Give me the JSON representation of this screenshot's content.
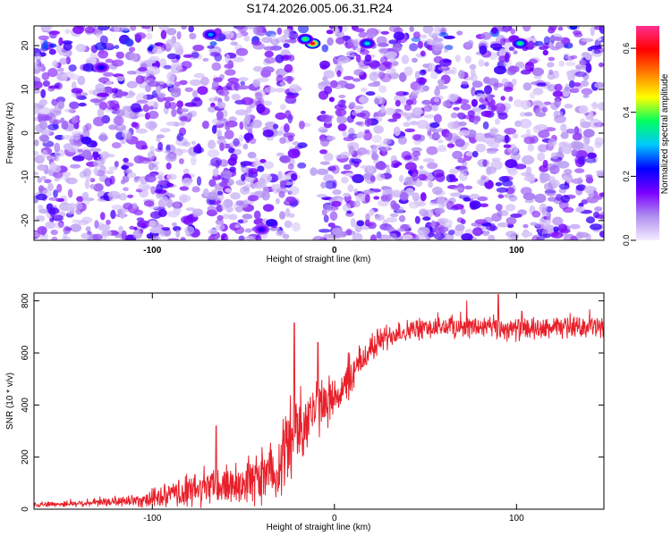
{
  "title": "S174.2026.005.06.31.R24",
  "chart_data": [
    {
      "type": "heatmap",
      "xlabel": "Height of straight line (km)",
      "ylabel": "Frequency (Hz)",
      "xlim": [
        -165,
        148
      ],
      "ylim": [
        -24.5,
        24.5
      ],
      "x_ticks": [
        -100,
        0,
        100
      ],
      "x_tick_labels": [
        "-100",
        "0",
        "100"
      ],
      "y_ticks": [
        -20,
        -10,
        0,
        10,
        20
      ],
      "y_tick_labels": [
        "-20",
        "-10",
        "0",
        "10",
        "20"
      ],
      "colorbar": {
        "label": "Normalized spectral amplitude",
        "range": [
          0.0,
          0.67
        ],
        "ticks": [
          0.0,
          0.2,
          0.4,
          0.6
        ],
        "tick_labels": [
          "0.0",
          "0.2",
          "0.4",
          "0.6"
        ],
        "colors": [
          "#f4ecff",
          "#b090f0",
          "#7a00ff",
          "#0000ff",
          "#00c8ff",
          "#00ff60",
          "#ffff00",
          "#ff8000",
          "#ff0000",
          "#ff3090"
        ]
      },
      "hotspots": [
        {
          "x": -68,
          "y": 22.5,
          "value": 0.28
        },
        {
          "x": -12,
          "y": 20.5,
          "value": 0.62
        },
        {
          "x": -16,
          "y": 21.5,
          "value": 0.38
        },
        {
          "x": 18,
          "y": 20.5,
          "value": 0.32
        },
        {
          "x": 102,
          "y": 20.5,
          "value": 0.36
        },
        {
          "x": -128,
          "y": 15,
          "value": 0.22
        },
        {
          "x": -40,
          "y": -22,
          "value": 0.2
        }
      ],
      "low_amplitude_bands_x": [
        [
          -20,
          -7
        ],
        [
          -74,
          -68
        ],
        [
          100,
          105
        ]
      ],
      "grid": false,
      "legend": "none"
    },
    {
      "type": "line",
      "xlabel": "Height of straight line (km)",
      "ylabel": "SNR (10 * v/v)",
      "xlim": [
        -165,
        148
      ],
      "ylim": [
        0,
        830
      ],
      "x_ticks": [
        -100,
        0,
        100
      ],
      "x_tick_labels": [
        "-100",
        "0",
        "100"
      ],
      "y_ticks": [
        0,
        200,
        400,
        600,
        800
      ],
      "y_tick_labels": [
        "0",
        "200",
        "400",
        "600",
        "800"
      ],
      "color": "#e8202a",
      "grid": false,
      "legend": "none",
      "envelope": {
        "x": [
          -165,
          -150,
          -130,
          -110,
          -95,
          -85,
          -75,
          -65,
          -55,
          -45,
          -38,
          -32,
          -28,
          -24,
          -20,
          -16,
          -12,
          -8,
          -4,
          0,
          6,
          12,
          18,
          25,
          35,
          45,
          60,
          75,
          90,
          105,
          120,
          135,
          148
        ],
        "baseline": [
          18,
          20,
          25,
          33,
          45,
          60,
          75,
          88,
          98,
          108,
          125,
          160,
          215,
          270,
          315,
          350,
          375,
          395,
          415,
          430,
          470,
          540,
          600,
          650,
          680,
          690,
          700,
          700,
          695,
          690,
          695,
          700,
          700
        ],
        "noise": [
          10,
          12,
          15,
          25,
          45,
          60,
          75,
          85,
          90,
          95,
          110,
          140,
          160,
          170,
          170,
          150,
          130,
          115,
          100,
          90,
          80,
          75,
          65,
          55,
          45,
          45,
          45,
          45,
          50,
          45,
          42,
          40,
          40
        ]
      },
      "peaks": [
        {
          "x": -65,
          "y": 320
        },
        {
          "x": -22,
          "y": 715
        },
        {
          "x": -9,
          "y": 640
        },
        {
          "x": 90,
          "y": 825
        },
        {
          "x": 103,
          "y": 760
        }
      ]
    }
  ]
}
